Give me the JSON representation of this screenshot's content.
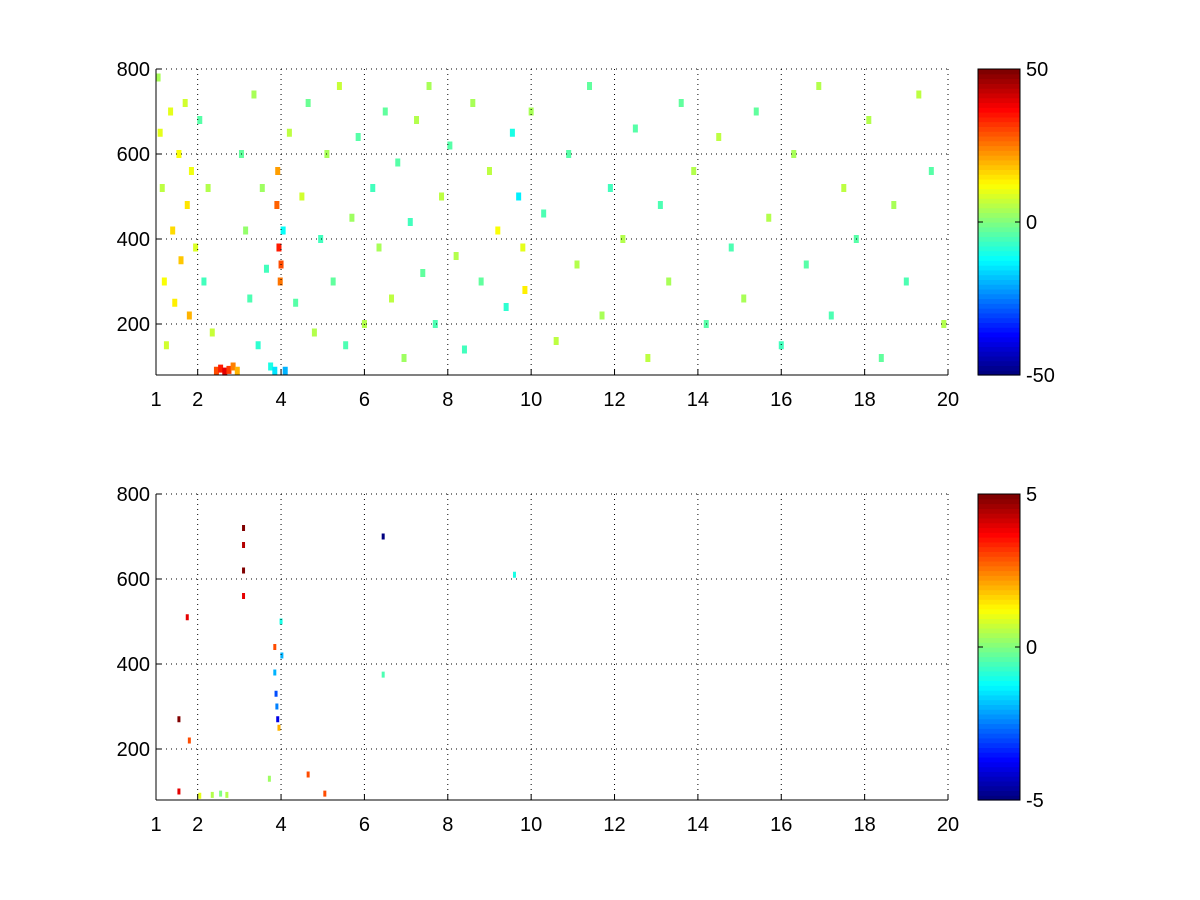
{
  "chart_data": [
    {
      "type": "heatmap",
      "title": "",
      "xlabel": "",
      "ylabel": "",
      "xlim": [
        1,
        20
      ],
      "ylim": [
        80,
        800
      ],
      "x_ticks": [
        1,
        2,
        4,
        6,
        8,
        10,
        12,
        14,
        16,
        18,
        20
      ],
      "y_ticks": [
        200,
        400,
        600,
        800
      ],
      "grid": true,
      "colormap": "jet",
      "colorbar": {
        "min": -50,
        "max": 50,
        "ticks": [
          -50,
          0,
          50
        ]
      },
      "note_values": "sparse cells; value 0 ~ green/cyan, positive ~ yellow/orange/red",
      "cells": [
        [
          1.05,
          780,
          4
        ],
        [
          1.1,
          650,
          10
        ],
        [
          1.15,
          520,
          6
        ],
        [
          1.2,
          300,
          12
        ],
        [
          1.25,
          150,
          8
        ],
        [
          1.35,
          700,
          10
        ],
        [
          1.4,
          420,
          16
        ],
        [
          1.45,
          250,
          14
        ],
        [
          1.55,
          600,
          12
        ],
        [
          1.6,
          350,
          18
        ],
        [
          1.7,
          720,
          8
        ],
        [
          1.75,
          480,
          15
        ],
        [
          1.8,
          220,
          20
        ],
        [
          1.85,
          560,
          11
        ],
        [
          1.95,
          380,
          9
        ],
        [
          2.05,
          680,
          -4
        ],
        [
          2.15,
          300,
          -6
        ],
        [
          2.25,
          520,
          5
        ],
        [
          2.35,
          180,
          7
        ],
        [
          2.45,
          90,
          30
        ],
        [
          2.55,
          95,
          35
        ],
        [
          2.65,
          88,
          40
        ],
        [
          2.75,
          92,
          32
        ],
        [
          2.85,
          100,
          25
        ],
        [
          2.95,
          90,
          20
        ],
        [
          3.05,
          600,
          -3
        ],
        [
          3.15,
          420,
          2
        ],
        [
          3.25,
          260,
          -5
        ],
        [
          3.35,
          740,
          4
        ],
        [
          3.45,
          150,
          -8
        ],
        [
          3.55,
          520,
          3
        ],
        [
          3.65,
          330,
          -6
        ],
        [
          3.75,
          100,
          -10
        ],
        [
          3.85,
          90,
          -15
        ],
        [
          3.9,
          480,
          28
        ],
        [
          3.95,
          380,
          35
        ],
        [
          4.0,
          340,
          30
        ],
        [
          3.92,
          560,
          22
        ],
        [
          3.98,
          300,
          26
        ],
        [
          4.05,
          420,
          -12
        ],
        [
          4.1,
          90,
          -20
        ],
        [
          4.2,
          650,
          6
        ],
        [
          4.35,
          250,
          -4
        ],
        [
          4.5,
          500,
          8
        ],
        [
          4.65,
          720,
          -2
        ],
        [
          4.8,
          180,
          5
        ],
        [
          4.95,
          400,
          -6
        ],
        [
          5.1,
          600,
          4
        ],
        [
          5.25,
          300,
          -3
        ],
        [
          5.4,
          760,
          7
        ],
        [
          5.55,
          150,
          -5
        ],
        [
          5.7,
          450,
          3
        ],
        [
          5.85,
          640,
          -4
        ],
        [
          6.0,
          200,
          5
        ],
        [
          6.2,
          520,
          -6
        ],
        [
          6.35,
          380,
          4
        ],
        [
          6.5,
          700,
          -3
        ],
        [
          6.65,
          260,
          6
        ],
        [
          6.8,
          580,
          -4
        ],
        [
          6.95,
          120,
          3
        ],
        [
          7.1,
          440,
          -6
        ],
        [
          7.25,
          680,
          5
        ],
        [
          7.4,
          320,
          -3
        ],
        [
          7.55,
          760,
          4
        ],
        [
          7.7,
          200,
          -5
        ],
        [
          7.85,
          500,
          6
        ],
        [
          8.05,
          620,
          -4
        ],
        [
          8.2,
          360,
          5
        ],
        [
          8.4,
          140,
          -6
        ],
        [
          8.6,
          720,
          4
        ],
        [
          8.8,
          300,
          -3
        ],
        [
          9.0,
          560,
          6
        ],
        [
          9.2,
          420,
          12
        ],
        [
          9.4,
          240,
          -8
        ],
        [
          9.55,
          650,
          -10
        ],
        [
          9.7,
          500,
          -14
        ],
        [
          9.8,
          380,
          10
        ],
        [
          9.85,
          280,
          14
        ],
        [
          10.0,
          700,
          4
        ],
        [
          10.3,
          460,
          -5
        ],
        [
          10.6,
          160,
          6
        ],
        [
          10.9,
          600,
          -4
        ],
        [
          11.1,
          340,
          5
        ],
        [
          11.4,
          760,
          -3
        ],
        [
          11.7,
          220,
          4
        ],
        [
          11.9,
          520,
          -6
        ],
        [
          12.2,
          400,
          5
        ],
        [
          12.5,
          660,
          -4
        ],
        [
          12.8,
          120,
          6
        ],
        [
          13.1,
          480,
          -5
        ],
        [
          13.3,
          300,
          4
        ],
        [
          13.6,
          720,
          -3
        ],
        [
          13.9,
          560,
          5
        ],
        [
          14.2,
          200,
          -4
        ],
        [
          14.5,
          640,
          6
        ],
        [
          14.8,
          380,
          -5
        ],
        [
          15.1,
          260,
          4
        ],
        [
          15.4,
          700,
          -3
        ],
        [
          15.7,
          450,
          5
        ],
        [
          16.0,
          150,
          -6
        ],
        [
          16.3,
          600,
          4
        ],
        [
          16.6,
          340,
          -4
        ],
        [
          16.9,
          760,
          5
        ],
        [
          17.2,
          220,
          -5
        ],
        [
          17.5,
          520,
          6
        ],
        [
          17.8,
          400,
          -4
        ],
        [
          18.1,
          680,
          5
        ],
        [
          18.4,
          120,
          -3
        ],
        [
          18.7,
          480,
          4
        ],
        [
          19.0,
          300,
          -5
        ],
        [
          19.3,
          740,
          6
        ],
        [
          19.6,
          560,
          -4
        ],
        [
          19.9,
          200,
          5
        ]
      ]
    },
    {
      "type": "heatmap",
      "title": "",
      "xlabel": "",
      "ylabel": "",
      "xlim": [
        1,
        20
      ],
      "ylim": [
        80,
        800
      ],
      "x_ticks": [
        1,
        2,
        4,
        6,
        8,
        10,
        12,
        14,
        16,
        18,
        20
      ],
      "y_ticks": [
        200,
        400,
        600,
        800
      ],
      "grid": true,
      "colormap": "jet",
      "colorbar": {
        "min": -5,
        "max": 5,
        "ticks": [
          -5,
          0,
          5
        ]
      },
      "cells": [
        [
          1.55,
          270,
          5
        ],
        [
          1.55,
          100,
          4
        ],
        [
          1.75,
          510,
          4
        ],
        [
          1.8,
          220,
          3
        ],
        [
          2.05,
          90,
          1
        ],
        [
          2.35,
          92,
          0.5
        ],
        [
          2.55,
          95,
          0
        ],
        [
          2.7,
          92,
          0.5
        ],
        [
          3.1,
          720,
          5
        ],
        [
          3.1,
          680,
          4.5
        ],
        [
          3.1,
          620,
          5
        ],
        [
          3.1,
          560,
          4
        ],
        [
          3.72,
          130,
          0.3
        ],
        [
          3.85,
          440,
          3
        ],
        [
          3.85,
          380,
          -2
        ],
        [
          3.88,
          330,
          -3
        ],
        [
          3.9,
          300,
          -2.5
        ],
        [
          3.92,
          270,
          -4
        ],
        [
          3.95,
          250,
          2
        ],
        [
          4.0,
          500,
          -1
        ],
        [
          4.02,
          420,
          -2
        ],
        [
          4.65,
          140,
          3
        ],
        [
          5.05,
          95,
          3
        ],
        [
          6.45,
          700,
          -5
        ],
        [
          6.45,
          375,
          -0.5
        ],
        [
          9.6,
          610,
          -1
        ]
      ]
    }
  ]
}
